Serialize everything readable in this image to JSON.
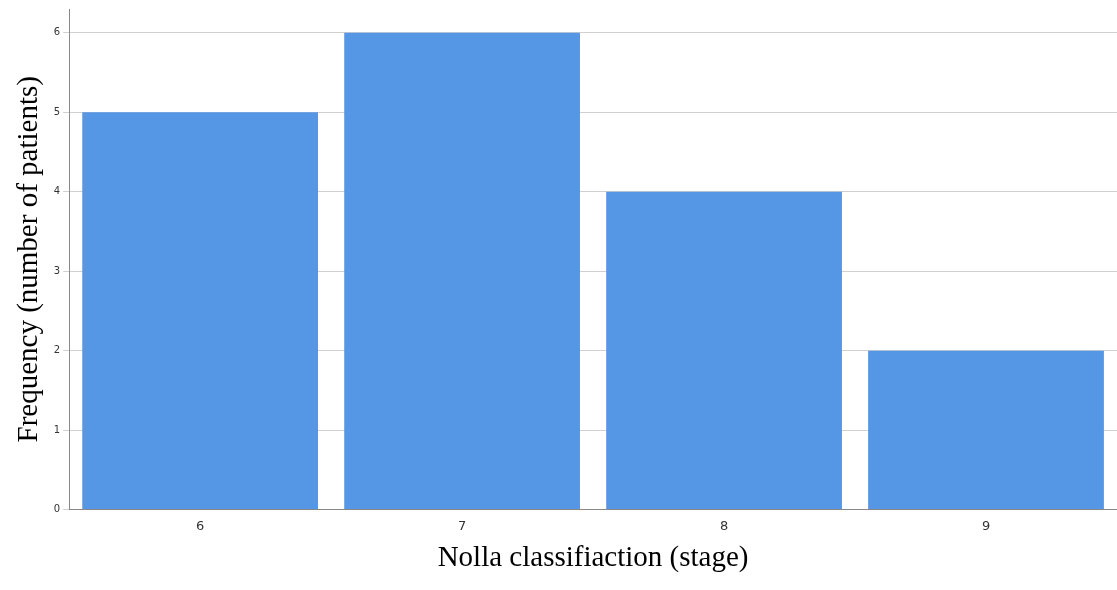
{
  "chart_data": {
    "type": "bar",
    "xlabel": "Nolla classifiaction (stage)",
    "ylabel": "Frequency (number of patients)",
    "categories": [
      "6",
      "7",
      "8",
      "9"
    ],
    "values": [
      5,
      6,
      4,
      2
    ],
    "color": "#5596e5",
    "ylim": [
      0,
      6.3
    ],
    "yticks": [
      0,
      1,
      2,
      3,
      4,
      5,
      6
    ],
    "grid": "y",
    "legend": false
  }
}
